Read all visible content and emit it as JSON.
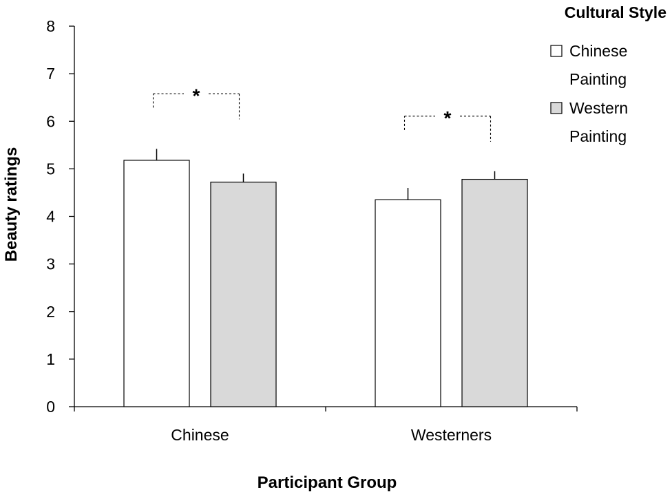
{
  "chart_data": {
    "type": "bar",
    "categories": [
      "Chinese",
      "Westerners"
    ],
    "series": [
      {
        "name": "Chinese Painting",
        "legend_lines": [
          "Chinese",
          "Painting"
        ],
        "values": [
          5.18,
          4.35
        ],
        "errors": [
          0.24,
          0.25
        ],
        "color": "#ffffff"
      },
      {
        "name": "Western Painting",
        "legend_lines": [
          "Western",
          "Painting"
        ],
        "values": [
          4.72,
          4.78
        ],
        "errors": [
          0.18,
          0.17
        ],
        "color": "#d9d9d9"
      }
    ],
    "xlabel": "Participant Group",
    "ylabel": "Beauty ratings",
    "ylim": [
      0,
      8
    ],
    "yticks": [
      "0",
      "1",
      "2",
      "3",
      "4",
      "5",
      "6",
      "7",
      "8"
    ],
    "legend_title": "Cultural Style",
    "legend_position": "top-right",
    "significance": [
      {
        "category": "Chinese",
        "label": "*"
      },
      {
        "category": "Westerners",
        "label": "*"
      }
    ],
    "grid": false
  }
}
